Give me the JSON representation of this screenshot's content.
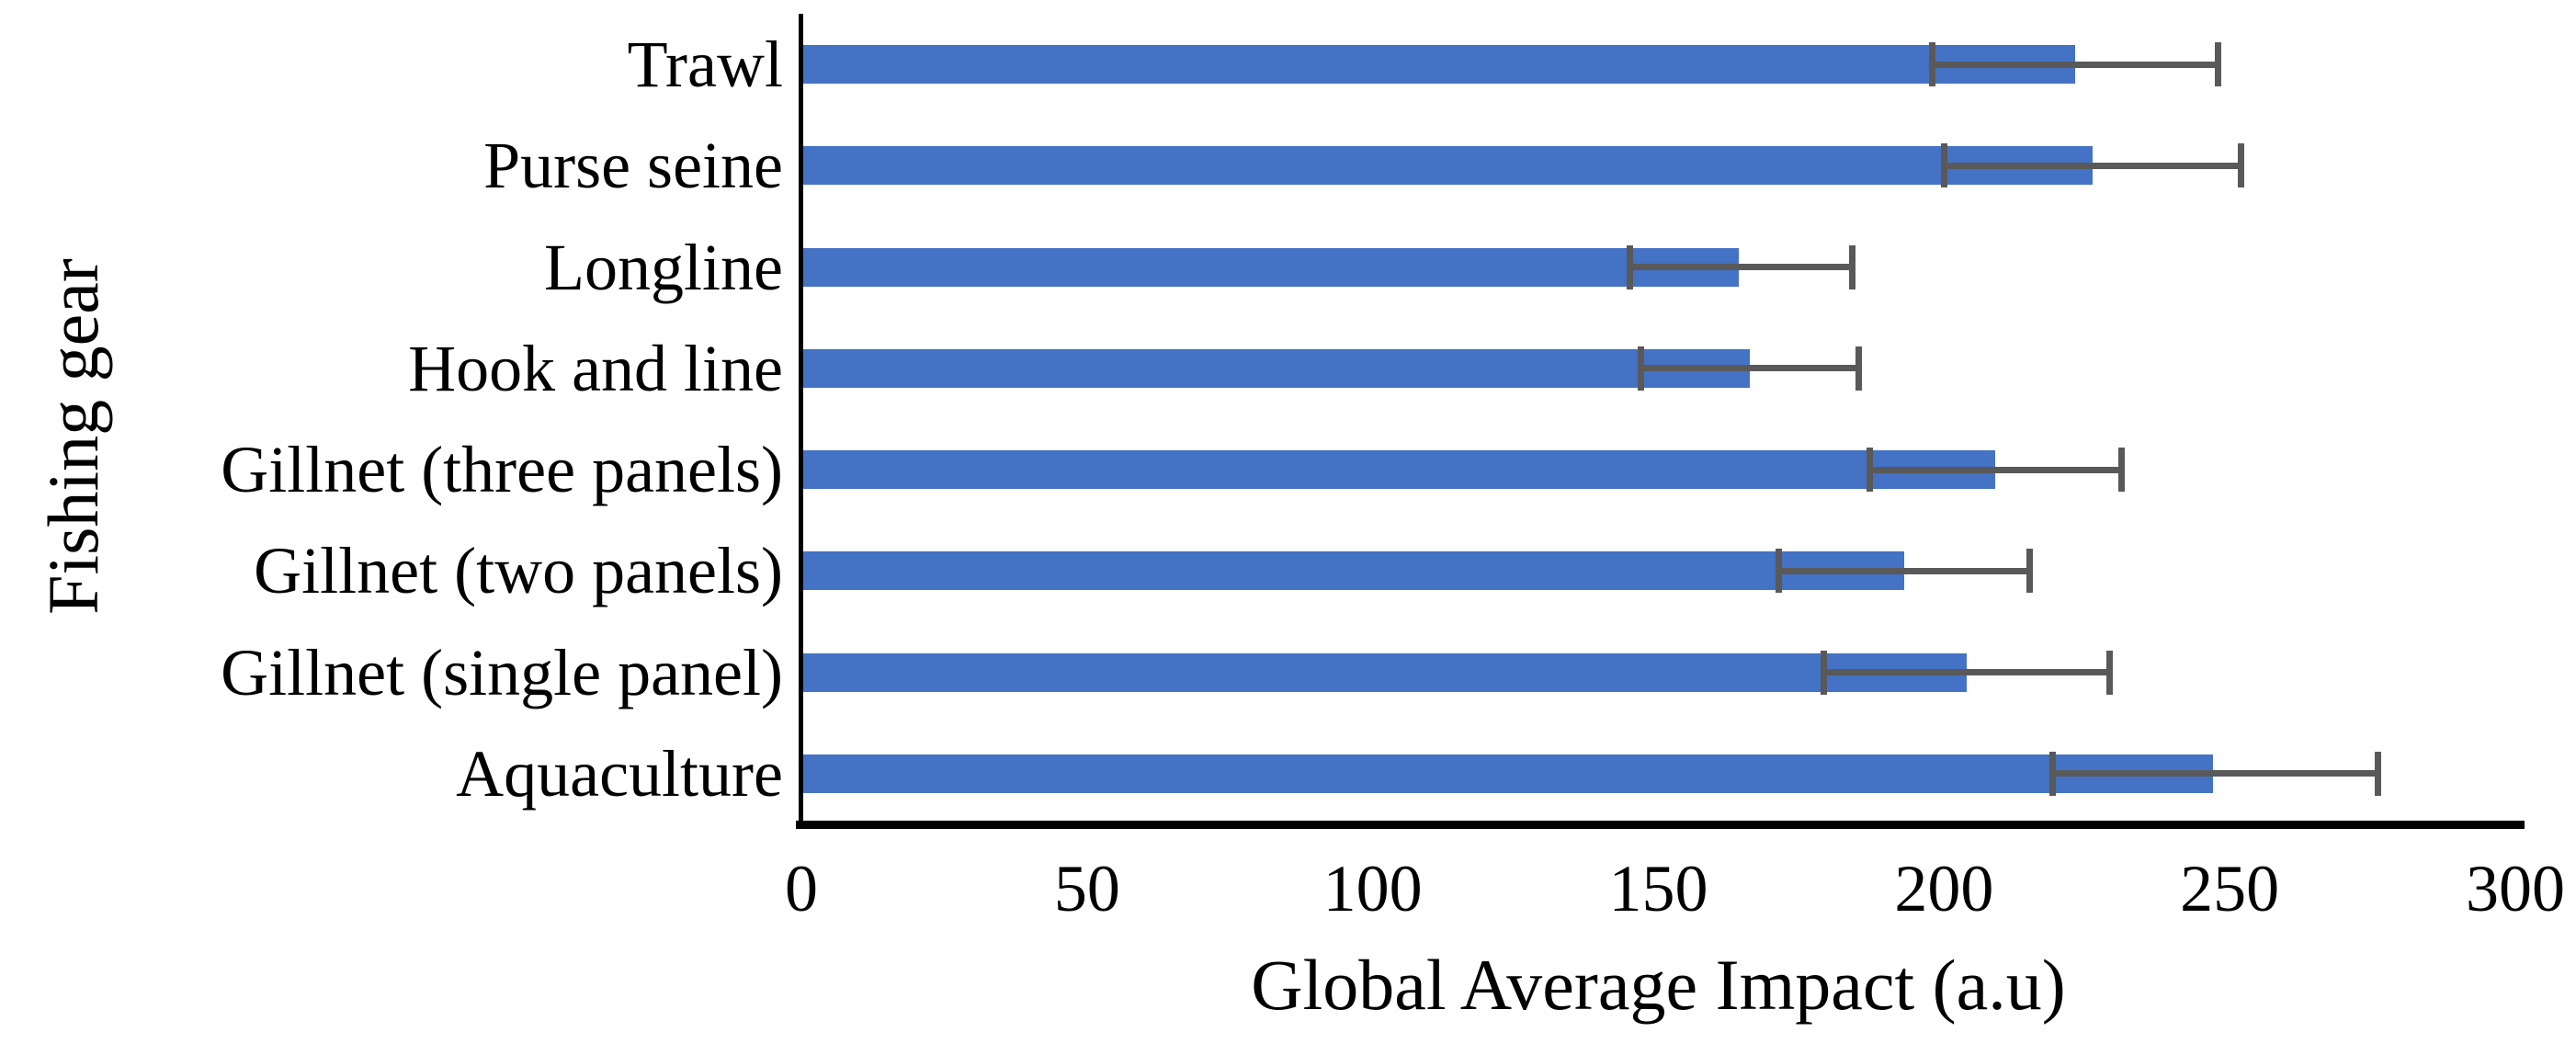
{
  "chart_data": {
    "type": "bar",
    "orientation": "horizontal",
    "title": "",
    "xlabel": "Global Average Impact (a.u)",
    "ylabel": "Fishing gear",
    "xlim": [
      0,
      300
    ],
    "xticks": [
      0,
      50,
      100,
      150,
      200,
      250,
      300
    ],
    "grid": false,
    "legend": "none",
    "bar_color": "#4472C4",
    "error_bar_color": "#595959",
    "axis_color": "#000000",
    "background_color": "#ffffff",
    "categories": [
      "Trawl",
      "Purse seine",
      "Longline",
      "Hook and line",
      "Gillnet (three panels)",
      "Gillnet (two panels)",
      "Gillnet (single panel)",
      "Aquaculture"
    ],
    "values": [
      223,
      226,
      164,
      166,
      209,
      193,
      204,
      247
    ],
    "error_low": [
      198,
      200,
      145,
      147,
      187,
      171,
      179,
      219
    ],
    "error_high": [
      248,
      252,
      184,
      185,
      231,
      215,
      229,
      276
    ]
  }
}
